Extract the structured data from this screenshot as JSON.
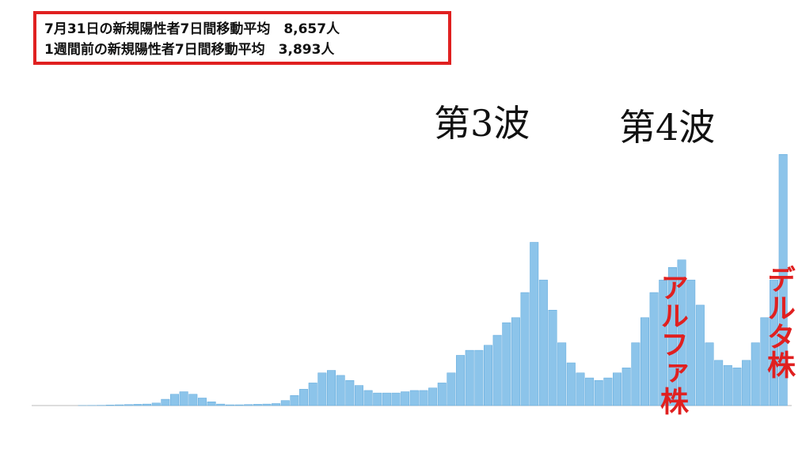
{
  "chart_data": {
    "type": "bar",
    "info_box": [
      "7月31日の新規陽性者7日間移動平均　8,657人",
      "1週間前の新規陽性者7日間移動平均　3,893人"
    ],
    "annotations": [
      "第3波",
      "第4波"
    ],
    "red_annotations": [
      "アルファ株",
      "デルタ株"
    ],
    "color": "#8cc4ea",
    "ylim": [
      0,
      13000
    ],
    "values": [
      0,
      0,
      0,
      0,
      0,
      2,
      5,
      10,
      20,
      30,
      40,
      50,
      60,
      100,
      250,
      450,
      550,
      450,
      300,
      150,
      60,
      30,
      30,
      40,
      50,
      60,
      80,
      200,
      400,
      650,
      900,
      1300,
      1400,
      1200,
      1000,
      800,
      600,
      500,
      500,
      500,
      550,
      600,
      600,
      700,
      900,
      1300,
      2000,
      2200,
      2200,
      2400,
      2800,
      3300,
      3500,
      4500,
      6500,
      5000,
      3800,
      2500,
      1700,
      1300,
      1100,
      1000,
      1100,
      1300,
      1500,
      2500,
      3500,
      4500,
      5000,
      5500,
      5800,
      5000,
      4000,
      2500,
      1800,
      1600,
      1500,
      1800,
      2500,
      3500,
      5000,
      10000
    ]
  }
}
